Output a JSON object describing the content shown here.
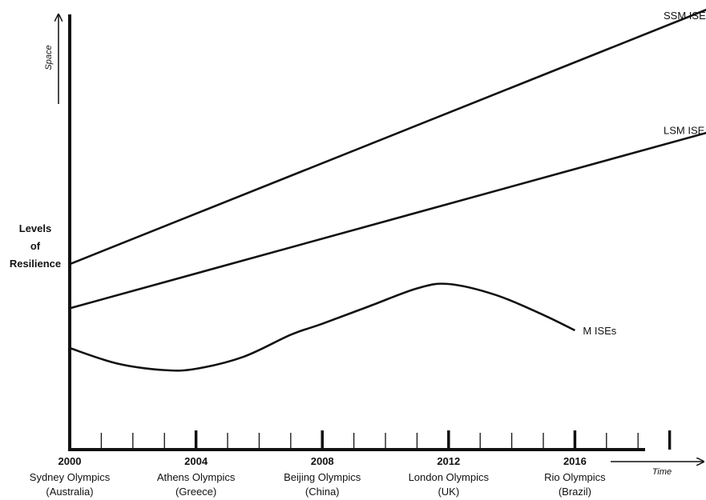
{
  "chart_data": {
    "type": "line",
    "ylabel_lines": [
      "Levels",
      "of",
      "Resilience"
    ],
    "y_arrow_label": "Space",
    "x_arrow_label": "Time",
    "xlim": [
      2000,
      2020
    ],
    "ylim": [
      0,
      100
    ],
    "x_ticks": [
      2000,
      2004,
      2008,
      2012,
      2016
    ],
    "x_tick_labels": [
      "2000",
      "2004",
      "2008",
      "2012",
      "2016"
    ],
    "events": [
      {
        "year": 2000,
        "name": "Sydney Olympics",
        "country": "(Australia)"
      },
      {
        "year": 2004,
        "name": "Athens Olympics",
        "country": "(Greece)"
      },
      {
        "year": 2008,
        "name": "Beijing Olympics",
        "country": "(China)"
      },
      {
        "year": 2012,
        "name": "London Olympics",
        "country": "(UK)"
      },
      {
        "year": 2016,
        "name": "Rio Olympics",
        "country": "(Brazil)"
      }
    ],
    "series": [
      {
        "name": "SSM ISE",
        "x": [
          2000,
          2020.3
        ],
        "y": [
          42,
          100
        ]
      },
      {
        "name": "LSM ISE",
        "x": [
          2000,
          2020.3
        ],
        "y": [
          32,
          72
        ]
      },
      {
        "name": "M ISEs",
        "x": [
          2000,
          2001.5,
          2003,
          2004,
          2005.5,
          2007,
          2008,
          2009.5,
          2011,
          2012,
          2013.5,
          2015,
          2016
        ],
        "y": [
          23,
          19.5,
          18,
          18.3,
          21,
          26,
          28.5,
          32.5,
          36.5,
          37.5,
          35,
          30.5,
          27
        ]
      }
    ]
  }
}
